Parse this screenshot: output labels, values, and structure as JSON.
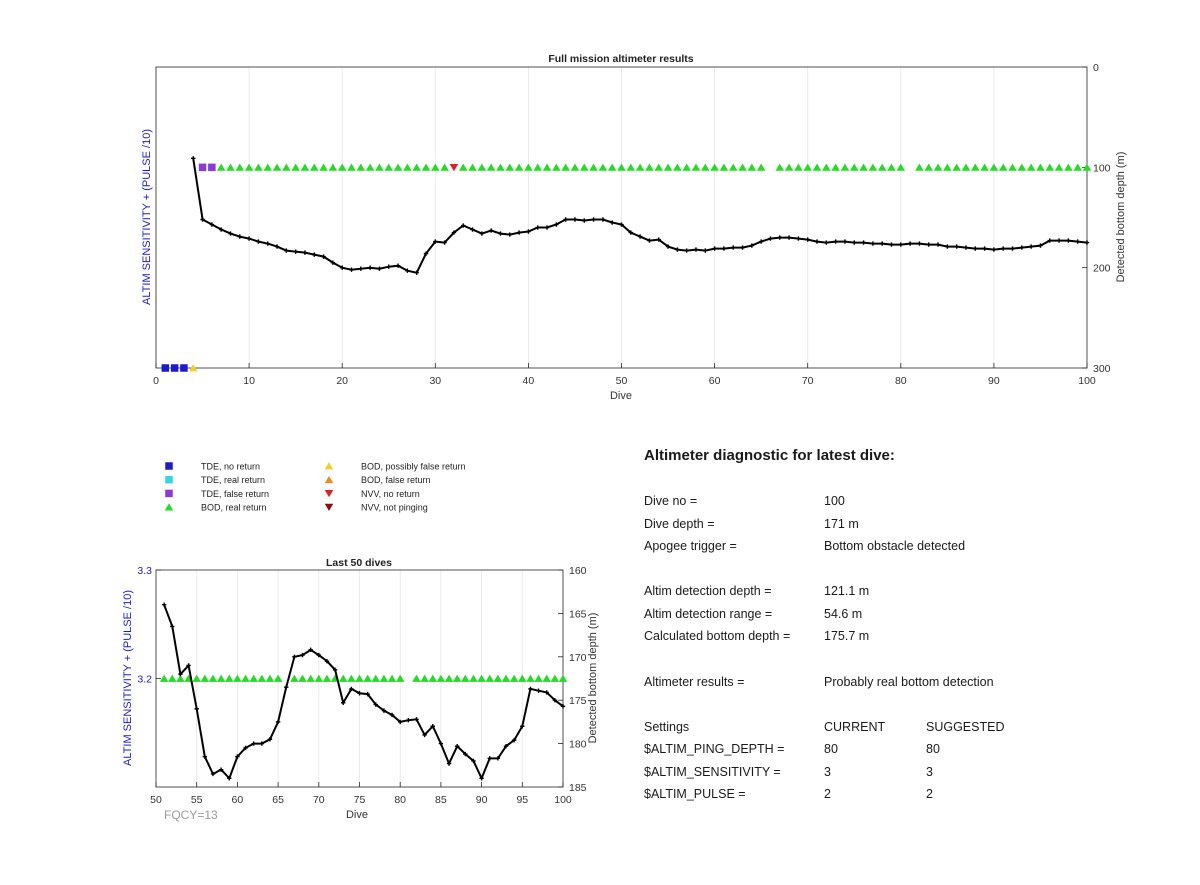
{
  "top_chart": {
    "title": "Full mission altimeter results",
    "xlabel": "Dive",
    "ylabel_left": "ALTIM SENSITIVITY + (PULSE /10)",
    "ylabel_right": "Detected bottom depth (m)",
    "xlim": [
      0,
      100
    ],
    "xticks": [
      0,
      10,
      20,
      30,
      40,
      50,
      60,
      70,
      80,
      90,
      100
    ],
    "right_ylim": [
      0,
      300
    ],
    "right_yticks": [
      0,
      100,
      200,
      300
    ]
  },
  "bottom_chart": {
    "title": "Last 50 dives",
    "xlabel": "Dive",
    "ylabel_left": "ALTIM SENSITIVITY + (PULSE /10)",
    "ylabel_right": "Detected bottom depth (m)",
    "xlim": [
      50,
      100
    ],
    "xticks": [
      50,
      55,
      60,
      65,
      70,
      75,
      80,
      85,
      90,
      95,
      100
    ],
    "left_ylim": [
      3.1,
      3.3
    ],
    "left_yticks": [
      3.2,
      3.3
    ],
    "right_ylim": [
      160,
      185
    ],
    "right_yticks": [
      160,
      165,
      170,
      175,
      180,
      185
    ]
  },
  "legend": [
    {
      "label": "TDE, no return",
      "shape": "square",
      "color": "#1a1ad0"
    },
    {
      "label": "TDE, real return",
      "shape": "square",
      "color": "#33d6e6"
    },
    {
      "label": "TDE, false return",
      "shape": "square",
      "color": "#8a3ad6"
    },
    {
      "label": "BOD, real return",
      "shape": "triangle-up",
      "color": "#22dd22"
    },
    {
      "label": "BOD, possibly false return",
      "shape": "triangle-up",
      "color": "#f0d020"
    },
    {
      "label": "BOD, false return",
      "shape": "triangle-up",
      "color": "#f08a1a"
    },
    {
      "label": "NVV, no return",
      "shape": "triangle-down",
      "color": "#e02020"
    },
    {
      "label": "NVV, not pinging",
      "shape": "triangle-down",
      "color": "#8a1010"
    }
  ],
  "fqcy": "FQCY=13",
  "diagnostic": {
    "title": "Altimeter diagnostic for latest dive:",
    "rows1": [
      {
        "label": "Dive no =",
        "value": "100"
      },
      {
        "label": "Dive depth =",
        "value": "171 m"
      },
      {
        "label": "Apogee trigger =",
        "value": "Bottom obstacle detected"
      }
    ],
    "rows2": [
      {
        "label": "Altim detection depth =",
        "value": "121.1 m"
      },
      {
        "label": "Altim detection range =",
        "value": "54.6 m"
      },
      {
        "label": "Calculated bottom depth =",
        "value": "175.7 m"
      }
    ],
    "results": {
      "label": "Altimeter results =",
      "value": "Probably real bottom detection"
    },
    "settings_header": {
      "label": "Settings",
      "current": "CURRENT",
      "suggested": "SUGGESTED"
    },
    "settings": [
      {
        "label": "$ALTIM_PING_DEPTH =",
        "current": "80",
        "suggested": "80"
      },
      {
        "label": "$ALTIM_SENSITIVITY =",
        "current": "3",
        "suggested": "3"
      },
      {
        "label": "$ALTIM_PULSE =",
        "current": "2",
        "suggested": "2"
      }
    ]
  },
  "chart_data": [
    {
      "type": "line",
      "title": "Full mission altimeter results",
      "xlabel": "Dive",
      "ylabel": "Detected bottom depth (m)",
      "xlim": [
        0,
        100
      ],
      "ylim": [
        0,
        300
      ],
      "y_reversed": true,
      "grid": "vertical",
      "series": [
        {
          "name": "Detected bottom depth",
          "color": "#000000",
          "x": [
            4,
            5,
            6,
            7,
            8,
            9,
            10,
            11,
            12,
            13,
            14,
            15,
            16,
            17,
            18,
            19,
            20,
            21,
            22,
            23,
            24,
            25,
            26,
            27,
            28,
            29,
            30,
            31,
            32,
            33,
            34,
            35,
            36,
            37,
            38,
            39,
            40,
            41,
            42,
            43,
            44,
            45,
            46,
            47,
            48,
            49,
            50,
            51,
            52,
            53,
            54,
            55,
            56,
            57,
            58,
            59,
            60,
            61,
            62,
            63,
            64,
            65,
            66,
            67,
            68,
            69,
            70,
            71,
            72,
            73,
            74,
            75,
            76,
            77,
            78,
            79,
            80,
            81,
            82,
            83,
            84,
            85,
            86,
            87,
            88,
            89,
            90,
            91,
            92,
            93,
            94,
            95,
            96,
            97,
            98,
            99,
            100
          ],
          "y": [
            91,
            152,
            157,
            162,
            166,
            169,
            171,
            174,
            176,
            179,
            183,
            184,
            185,
            187,
            189,
            195,
            200,
            202,
            201,
            200,
            201,
            199,
            198,
            203,
            205,
            186,
            174,
            175,
            165,
            158,
            162,
            166,
            163,
            166,
            167,
            165,
            164,
            160,
            160,
            157,
            152,
            152,
            153,
            152,
            152,
            155,
            157,
            165,
            169,
            173,
            172,
            179,
            182,
            183,
            182,
            183,
            181,
            181,
            180,
            180,
            178,
            174,
            171,
            170,
            170,
            171,
            172,
            174,
            175,
            174,
            174,
            175,
            175,
            176,
            176,
            177,
            177,
            176,
            176,
            177,
            177,
            179,
            179,
            180,
            181,
            181,
            182,
            181,
            181,
            180,
            179,
            178,
            173,
            173,
            173,
            174,
            175
          ]
        }
      ],
      "markers": [
        {
          "dives": [
            1,
            2,
            3
          ],
          "y": 300,
          "shape": "square",
          "color": "#1a1ad0",
          "legend": "TDE, no return"
        },
        {
          "dives": [
            4
          ],
          "y": 300,
          "shape": "triangle-up",
          "color": "#f0d020",
          "legend": "BOD, possibly false return"
        },
        {
          "dives": [
            5,
            6
          ],
          "y": 100,
          "shape": "square",
          "color": "#8a3ad6",
          "legend": "TDE, false return"
        },
        {
          "dives": [
            7,
            8,
            9,
            10,
            11,
            12,
            13,
            14,
            15,
            16,
            17,
            18,
            19,
            20,
            21,
            22,
            23,
            24,
            25,
            26,
            27,
            28,
            29,
            30,
            31,
            33,
            34,
            35,
            36,
            37,
            38,
            39,
            40,
            41,
            42,
            43,
            44,
            45,
            46,
            47,
            48,
            49,
            50,
            51,
            52,
            53,
            54,
            55,
            56,
            57,
            58,
            59,
            60,
            61,
            62,
            63,
            64,
            65,
            67,
            68,
            69,
            70,
            71,
            72,
            73,
            74,
            75,
            76,
            77,
            78,
            79,
            80,
            82,
            83,
            84,
            85,
            86,
            87,
            88,
            89,
            90,
            91,
            92,
            93,
            94,
            95,
            96,
            97,
            98,
            99,
            100
          ],
          "y": 100,
          "shape": "triangle-up",
          "color": "#22dd22",
          "legend": "BOD, real return"
        },
        {
          "dives": [
            32
          ],
          "y": 100,
          "shape": "triangle-down",
          "color": "#e02020",
          "legend": "NVV, no return"
        }
      ]
    },
    {
      "type": "line",
      "title": "Last 50 dives",
      "xlabel": "Dive",
      "ylabel": "Detected bottom depth (m)",
      "xlim": [
        50,
        100
      ],
      "ylim": [
        160,
        185
      ],
      "y_reversed": true,
      "grid": "vertical",
      "series": [
        {
          "name": "Detected bottom depth",
          "color": "#000000",
          "x": [
            51,
            52,
            53,
            54,
            55,
            56,
            57,
            58,
            59,
            60,
            61,
            62,
            63,
            64,
            65,
            66,
            67,
            68,
            69,
            70,
            71,
            72,
            73,
            74,
            75,
            76,
            77,
            78,
            79,
            80,
            81,
            82,
            83,
            84,
            85,
            86,
            87,
            88,
            89,
            90,
            91,
            92,
            93,
            94,
            95,
            96,
            97,
            98,
            99,
            100
          ],
          "y": [
            164,
            166.5,
            172,
            171,
            176,
            181.5,
            183.5,
            183,
            184,
            181.5,
            180.5,
            180,
            180,
            179.5,
            177.5,
            173.5,
            170,
            169.8,
            169.2,
            169.8,
            170.5,
            171.5,
            175.3,
            173.7,
            174.2,
            174.3,
            175.5,
            176.2,
            176.7,
            177.5,
            177.3,
            177.2,
            179,
            178,
            180,
            182.3,
            180.3,
            181.2,
            182,
            184,
            181.7,
            181.7,
            180.3,
            179.6,
            178,
            173.7,
            173.9,
            174.1,
            175,
            175.7
          ]
        }
      ],
      "markers": [
        {
          "dives": [
            51,
            52,
            53,
            54,
            55,
            56,
            57,
            58,
            59,
            60,
            61,
            62,
            63,
            64,
            65,
            67,
            68,
            69,
            70,
            71,
            72,
            73,
            74,
            75,
            76,
            77,
            78,
            79,
            80,
            82,
            83,
            84,
            85,
            86,
            87,
            88,
            89,
            90,
            91,
            92,
            93,
            94,
            95,
            96,
            97,
            98,
            99,
            100
          ],
          "sensitivity_axis_value": 3.2,
          "shape": "triangle-up",
          "color": "#22dd22",
          "legend": "BOD, real return"
        }
      ]
    }
  ]
}
